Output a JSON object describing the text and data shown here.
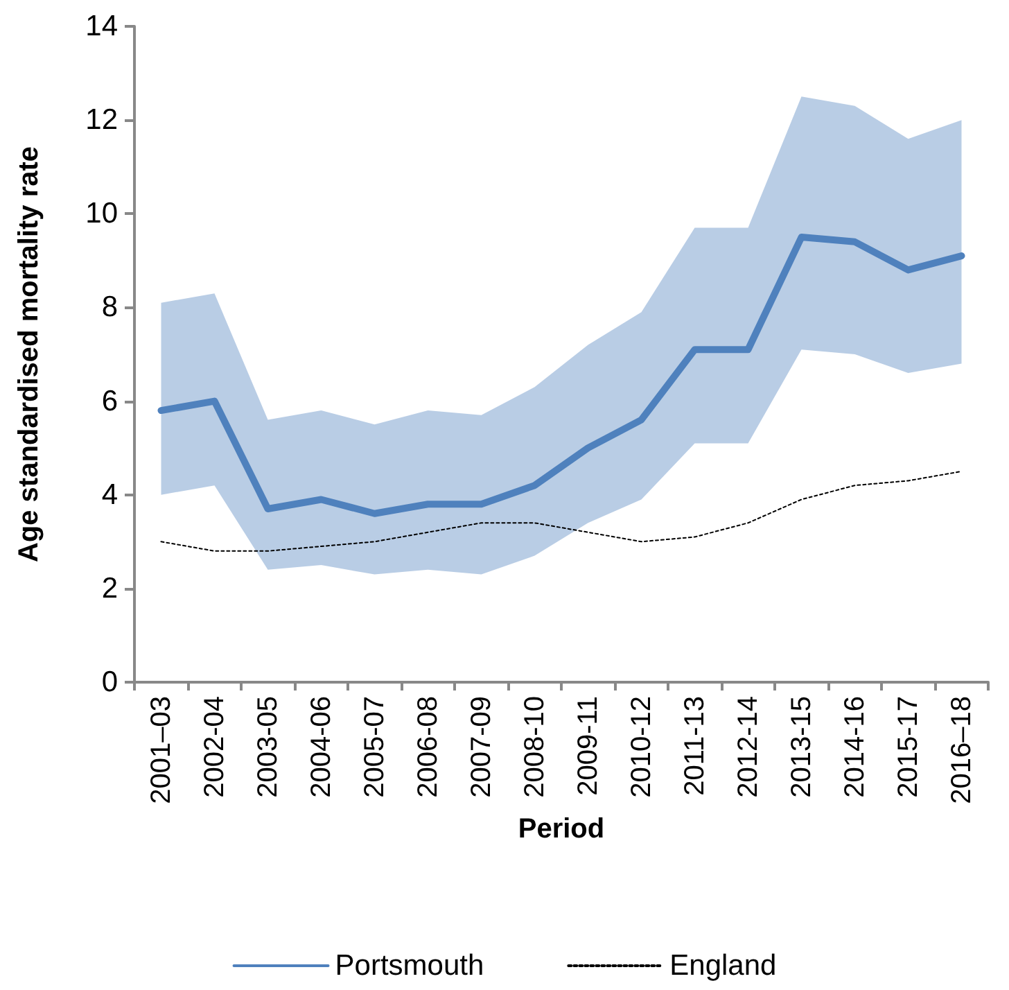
{
  "chart_data": {
    "type": "line",
    "xlabel": "Period",
    "ylabel": "Age standardised mortality rate",
    "categories": [
      "2001–03",
      "2002-04",
      "2003-05",
      "2004-06",
      "2005-07",
      "2006-08",
      "2007-09",
      "2008-10",
      "2009-11",
      "2010-12",
      "2011-13",
      "2012-14",
      "2013-15",
      "2014-16",
      "2015-17",
      "2016–18"
    ],
    "series": [
      {
        "name": "Portsmouth",
        "color": "#4f81bd",
        "line_style": "solid",
        "values": [
          5.8,
          6.0,
          3.7,
          3.9,
          3.6,
          3.8,
          3.8,
          4.2,
          5.0,
          5.6,
          7.1,
          7.1,
          9.5,
          9.4,
          8.8,
          9.1
        ],
        "lower": [
          4.0,
          4.2,
          2.4,
          2.5,
          2.3,
          2.4,
          2.3,
          2.7,
          3.4,
          3.9,
          5.1,
          5.1,
          7.1,
          7.0,
          6.6,
          6.8
        ],
        "upper": [
          8.1,
          8.3,
          5.6,
          5.8,
          5.5,
          5.8,
          5.7,
          6.3,
          7.2,
          7.9,
          9.7,
          9.7,
          12.5,
          12.3,
          11.6,
          12.0
        ]
      },
      {
        "name": "England",
        "color": "#000000",
        "line_style": "dotted",
        "values": [
          3.0,
          2.8,
          2.8,
          2.9,
          3.0,
          3.2,
          3.4,
          3.4,
          3.2,
          3.0,
          3.1,
          3.4,
          3.9,
          4.2,
          4.3,
          4.5
        ]
      }
    ],
    "ylim": [
      0,
      14
    ],
    "yticks": [
      0,
      2,
      4,
      6,
      8,
      10,
      12,
      14
    ],
    "grid": false,
    "legend": "bottom",
    "marker": "none"
  }
}
